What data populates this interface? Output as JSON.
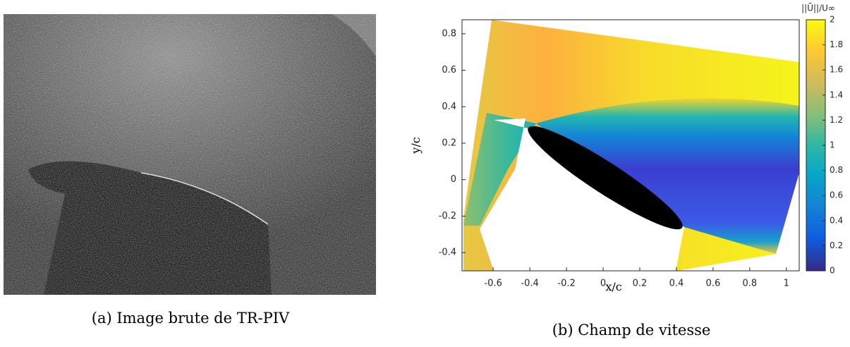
{
  "panel_a": {
    "caption": "(a) Image brute de TR-PIV"
  },
  "chart_data": {
    "type": "heatmap",
    "xlabel": "x/c",
    "ylabel": "y/c",
    "xlim": [
      -0.77,
      1.07
    ],
    "ylim": [
      -0.5,
      0.877
    ],
    "xticks": [
      -0.6,
      -0.4,
      -0.2,
      0,
      0.2,
      0.4,
      0.6,
      0.8,
      1
    ],
    "yticks": [
      -0.4,
      -0.2,
      0,
      0.2,
      0.4,
      0.6,
      0.8
    ],
    "colorbar": {
      "label": "||Ū||/U∞",
      "lim": [
        0,
        2
      ],
      "ticks": [
        0,
        0.2,
        0.4,
        0.6,
        0.8,
        1,
        1.2,
        1.4,
        1.6,
        1.8,
        2
      ]
    },
    "caption": "(b) Champ de vitesse"
  }
}
